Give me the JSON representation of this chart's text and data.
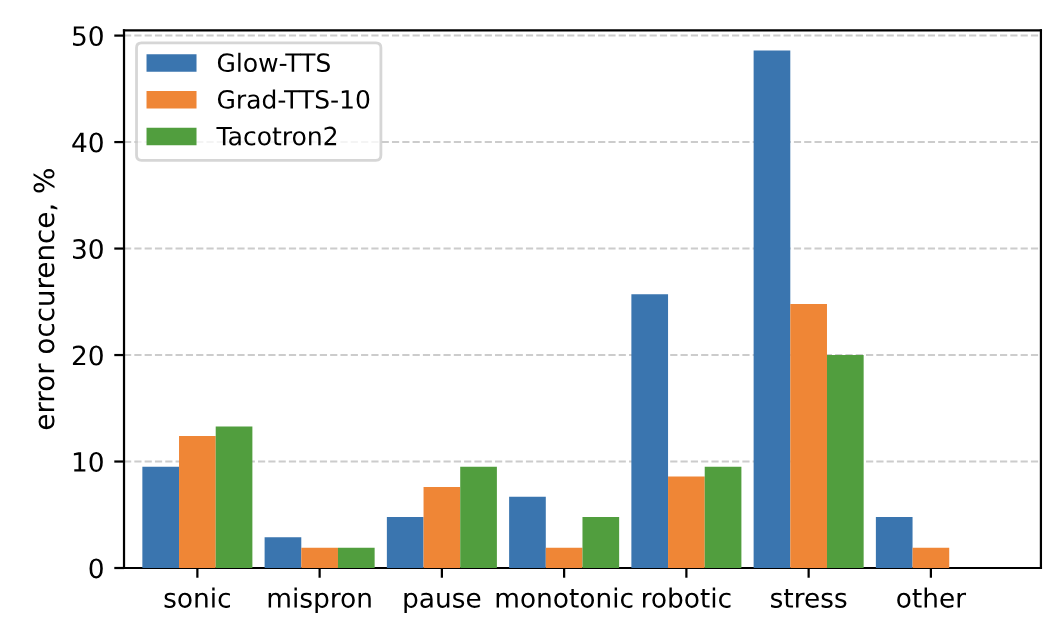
{
  "chart_data": {
    "type": "bar",
    "ylabel": "error occurence, %",
    "categories": [
      "sonic",
      "mispron",
      "pause",
      "monotonic",
      "robotic",
      "stress",
      "other"
    ],
    "series": [
      {
        "name": "Glow-TTS",
        "color": "#3a75af",
        "values": [
          9.5,
          2.9,
          4.8,
          6.7,
          25.7,
          48.6,
          4.8
        ]
      },
      {
        "name": "Grad-TTS-10",
        "color": "#ef8636",
        "values": [
          12.4,
          1.9,
          7.6,
          1.9,
          8.6,
          24.8,
          1.9
        ]
      },
      {
        "name": "Tacotron2",
        "color": "#519e3e",
        "values": [
          13.3,
          1.9,
          9.5,
          4.8,
          9.5,
          20.0,
          0
        ]
      }
    ],
    "ylim": [
      0,
      50.5
    ],
    "yticks": [
      0,
      10,
      20,
      30,
      40,
      50
    ],
    "grid": "y",
    "legend": "top left"
  }
}
